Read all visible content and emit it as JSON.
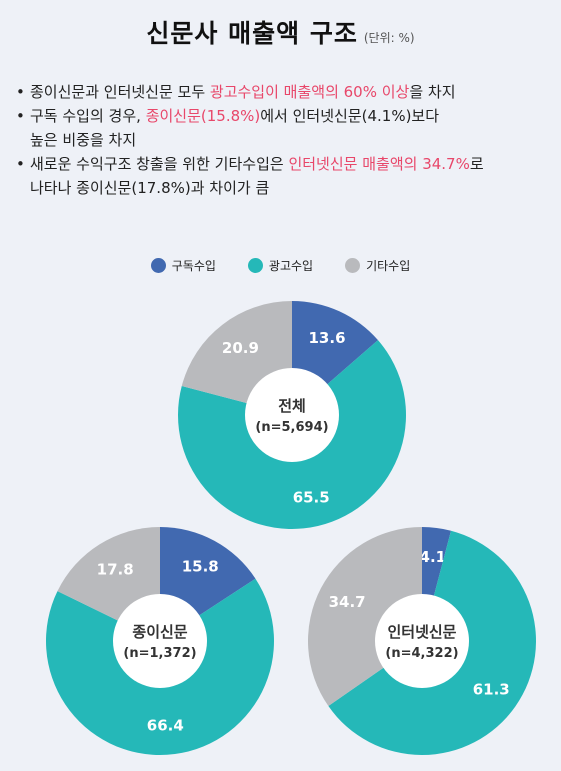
{
  "header": {
    "title": "신문사 매출액 구조",
    "unit": "(단위: %)"
  },
  "bullets": [
    {
      "segments": [
        {
          "text": "종이신문과 인터넷신문 모두 ",
          "highlight": false
        },
        {
          "text": "광고수입이 매출액의 60% 이상",
          "highlight": true
        },
        {
          "text": "을 차지",
          "highlight": false
        }
      ]
    },
    {
      "segments": [
        {
          "text": "구독 수입의 경우, ",
          "highlight": false
        },
        {
          "text": "종이신문(15.8%)",
          "highlight": true
        },
        {
          "text": "에서 인터넷신문(4.1%)보다",
          "highlight": false
        }
      ]
    },
    {
      "segments": [
        {
          "text": "높은 비중을 차지",
          "highlight": false
        }
      ],
      "continuation": true
    },
    {
      "segments": [
        {
          "text": "새로운 수익구조 창출을 위한 기타수입은 ",
          "highlight": false
        },
        {
          "text": "인터넷신문 매출액의 34.7%",
          "highlight": true
        },
        {
          "text": "로",
          "highlight": false
        }
      ]
    },
    {
      "segments": [
        {
          "text": "나타나 종이신문(17.8%)과 차이가 큼",
          "highlight": false
        }
      ],
      "continuation": true
    }
  ],
  "colors": {
    "subscription": "#4169b0",
    "advertising": "#25b8b8",
    "other": "#b9babd",
    "highlight": "#e8476a",
    "background": "#eef1f7"
  },
  "chart_data": {
    "type": "pie",
    "variant": "donut",
    "legend": [
      {
        "name": "구독수입",
        "color": "#4169b0"
      },
      {
        "name": "광고수입",
        "color": "#25b8b8"
      },
      {
        "name": "기타수입",
        "color": "#b9babd"
      }
    ],
    "legend_position": "top",
    "charts": [
      {
        "name": "전체",
        "n": "(n=5,694)",
        "slices": [
          {
            "series": "구독수입",
            "value": 13.6,
            "label": "13.6"
          },
          {
            "series": "광고수입",
            "value": 65.5,
            "label": "65.5"
          },
          {
            "series": "기타수입",
            "value": 20.9,
            "label": "20.9"
          }
        ]
      },
      {
        "name": "종이신문",
        "n": "(n=1,372)",
        "slices": [
          {
            "series": "구독수입",
            "value": 15.8,
            "label": "15.8"
          },
          {
            "series": "광고수입",
            "value": 66.4,
            "label": "66.4"
          },
          {
            "series": "기타수입",
            "value": 17.8,
            "label": "17.8"
          }
        ]
      },
      {
        "name": "인터넷신문",
        "n": "(n=4,322)",
        "slices": [
          {
            "series": "구독수입",
            "value": 4.1,
            "label": "4.1"
          },
          {
            "series": "광고수입",
            "value": 61.3,
            "label": "61.3"
          },
          {
            "series": "기타수입",
            "value": 34.7,
            "label": "34.7"
          }
        ]
      }
    ]
  }
}
